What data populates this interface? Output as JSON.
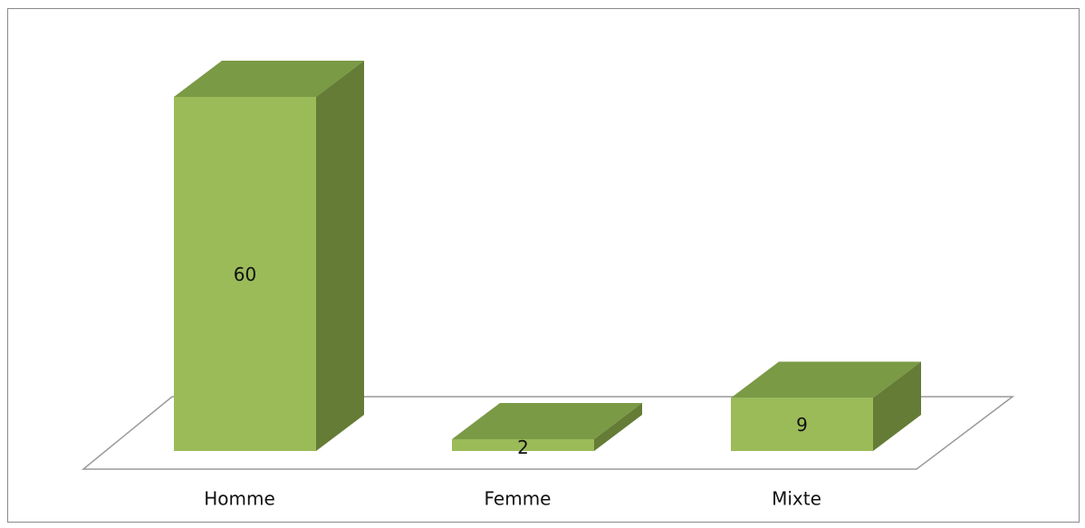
{
  "chart_data": {
    "type": "bar",
    "categories": [
      "Homme",
      "Femme",
      "Mixte"
    ],
    "values": [
      60,
      2,
      9
    ],
    "title": "",
    "xlabel": "",
    "ylabel": "",
    "ylim": [
      0,
      60
    ],
    "grid": false,
    "legend": "none",
    "style": "3d-column"
  },
  "colors": {
    "bar_front": "#9bbb59",
    "bar_top": "#7a9a45",
    "bar_side": "#647c36",
    "floor_stroke": "#9a9a9a",
    "frame": "#8a8a8a"
  }
}
